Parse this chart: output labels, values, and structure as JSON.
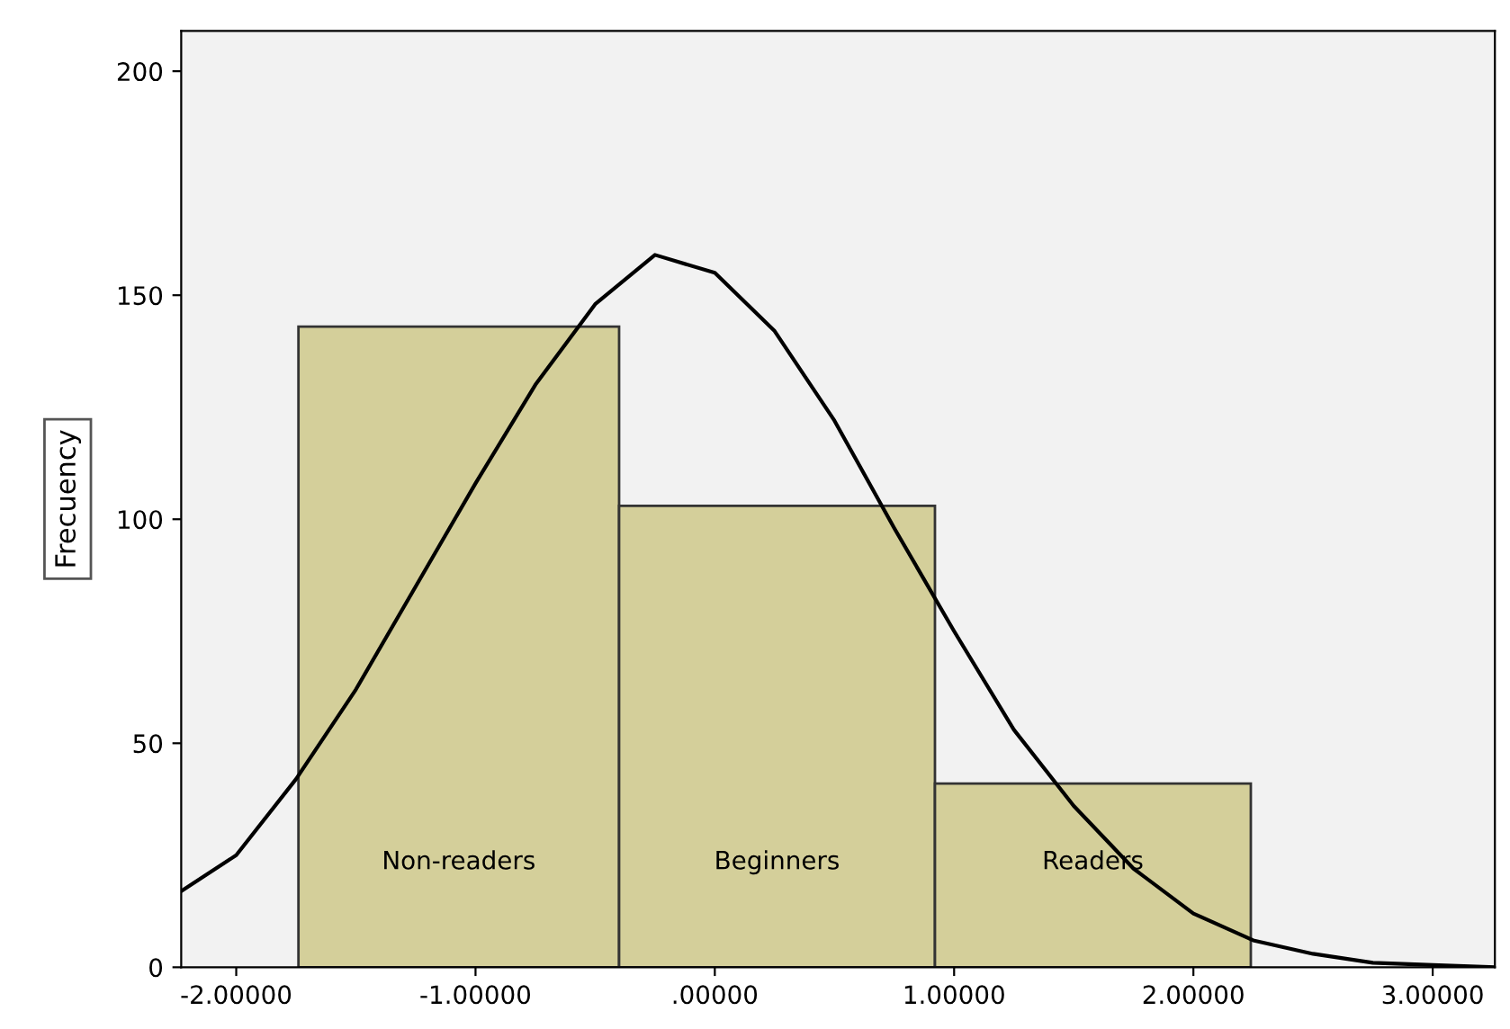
{
  "chart_data": {
    "type": "histogram",
    "ylabel": "Frecuency",
    "bins": [
      -1.74,
      -0.4,
      0.92,
      2.24
    ],
    "values": [
      143,
      103,
      41
    ],
    "color": "#d4cf9a",
    "series": [
      {
        "type": "line",
        "color": "#000000",
        "x": [
          -2.23,
          -2.0,
          -1.75,
          -1.5,
          -1.25,
          -1.0,
          -0.75,
          -0.5,
          -0.25,
          0.0,
          0.25,
          0.5,
          0.75,
          1.0,
          1.25,
          1.5,
          1.75,
          2.0,
          2.25,
          2.5,
          2.75,
          3.0,
          3.26
        ],
        "values": [
          17,
          25,
          42,
          62,
          85,
          108,
          130,
          148,
          159,
          155,
          142,
          122,
          98,
          75,
          53,
          36,
          22,
          12,
          6,
          3,
          1,
          0.5,
          0
        ]
      }
    ],
    "xlim": [
      -2.23,
      3.26
    ],
    "ylim": [
      0,
      209
    ],
    "xticks": [
      {
        "value": -2,
        "label": "-2.00000"
      },
      {
        "value": -1,
        "label": "-1.00000"
      },
      {
        "value": 0,
        "label": ".00000"
      },
      {
        "value": 1,
        "label": "1.00000"
      },
      {
        "value": 2,
        "label": "2.00000"
      },
      {
        "value": 3,
        "label": "3.00000"
      }
    ],
    "yticks": [
      0,
      50,
      100,
      150,
      200
    ],
    "grid": false,
    "annotations": [
      "Non-readers",
      "Beginners",
      "Readers"
    ]
  }
}
